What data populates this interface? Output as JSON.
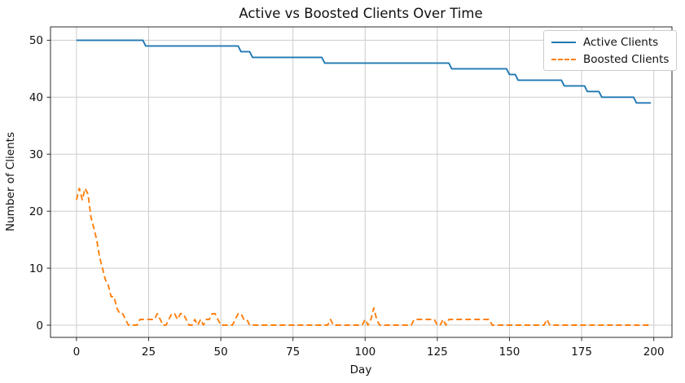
{
  "chart_data": {
    "type": "line",
    "title": "Active vs Boosted Clients Over Time",
    "xlabel": "Day",
    "ylabel": "Number of Clients",
    "xlim": [
      -9,
      206.3
    ],
    "ylim": [
      -2.15,
      52.35
    ],
    "x_ticks": [
      0,
      25,
      50,
      75,
      100,
      125,
      150,
      175,
      200
    ],
    "y_ticks": [
      0,
      10,
      20,
      30,
      40,
      50
    ],
    "grid": true,
    "legend_position": "upper right",
    "series": [
      {
        "name": "Active Clients",
        "color": "#1f77b4",
        "style": "solid",
        "x_start": 0,
        "x_step": 1,
        "values": [
          50,
          50,
          50,
          50,
          50,
          50,
          50,
          50,
          50,
          50,
          50,
          50,
          50,
          50,
          50,
          50,
          50,
          50,
          50,
          50,
          50,
          50,
          50,
          50,
          49,
          49,
          49,
          49,
          49,
          49,
          49,
          49,
          49,
          49,
          49,
          49,
          49,
          49,
          49,
          49,
          49,
          49,
          49,
          49,
          49,
          49,
          49,
          49,
          49,
          49,
          49,
          49,
          49,
          49,
          49,
          49,
          49,
          48,
          48,
          48,
          48,
          47,
          47,
          47,
          47,
          47,
          47,
          47,
          47,
          47,
          47,
          47,
          47,
          47,
          47,
          47,
          47,
          47,
          47,
          47,
          47,
          47,
          47,
          47,
          47,
          47,
          46,
          46,
          46,
          46,
          46,
          46,
          46,
          46,
          46,
          46,
          46,
          46,
          46,
          46,
          46,
          46,
          46,
          46,
          46,
          46,
          46,
          46,
          46,
          46,
          46,
          46,
          46,
          46,
          46,
          46,
          46,
          46,
          46,
          46,
          46,
          46,
          46,
          46,
          46,
          46,
          46,
          46,
          46,
          46,
          45,
          45,
          45,
          45,
          45,
          45,
          45,
          45,
          45,
          45,
          45,
          45,
          45,
          45,
          45,
          45,
          45,
          45,
          45,
          45,
          44,
          44,
          44,
          43,
          43,
          43,
          43,
          43,
          43,
          43,
          43,
          43,
          43,
          43,
          43,
          43,
          43,
          43,
          43,
          42,
          42,
          42,
          42,
          42,
          42,
          42,
          42,
          41,
          41,
          41,
          41,
          41,
          40,
          40,
          40,
          40,
          40,
          40,
          40,
          40,
          40,
          40,
          40,
          40,
          39,
          39,
          39,
          39,
          39,
          39
        ]
      },
      {
        "name": "Boosted Clients",
        "color": "#ff7f0e",
        "style": "dashed",
        "x_start": 0,
        "x_step": 1,
        "values": [
          22,
          24,
          22,
          24,
          23,
          19,
          17,
          15,
          12,
          10,
          8,
          7,
          5,
          5,
          3,
          2,
          2,
          1,
          0,
          0,
          0,
          0,
          1,
          1,
          1,
          1,
          1,
          1,
          2,
          1,
          0,
          0,
          1,
          2,
          2,
          1,
          2,
          2,
          1,
          0,
          0,
          1,
          0,
          1,
          0,
          1,
          1,
          2,
          2,
          1,
          0,
          0,
          0,
          0,
          0,
          1,
          2,
          2,
          1,
          1,
          0,
          0,
          0,
          0,
          0,
          0,
          0,
          0,
          0,
          0,
          0,
          0,
          0,
          0,
          0,
          0,
          0,
          0,
          0,
          0,
          0,
          0,
          0,
          0,
          0,
          0,
          0,
          0,
          1,
          0,
          0,
          0,
          0,
          0,
          0,
          0,
          0,
          0,
          0,
          0,
          1,
          0,
          1,
          3,
          1,
          0,
          0,
          0,
          0,
          0,
          0,
          0,
          0,
          0,
          0,
          0,
          0,
          1,
          1,
          1,
          1,
          1,
          1,
          1,
          1,
          0,
          0,
          1,
          0,
          1,
          1,
          1,
          1,
          1,
          1,
          1,
          1,
          1,
          1,
          1,
          1,
          1,
          1,
          1,
          0,
          0,
          0,
          0,
          0,
          0,
          0,
          0,
          0,
          0,
          0,
          0,
          0,
          0,
          0,
          0,
          0,
          0,
          0,
          1,
          0,
          0,
          0,
          0,
          0,
          0,
          0,
          0,
          0,
          0,
          0,
          0,
          0,
          0,
          0,
          0,
          0,
          0,
          0,
          0,
          0,
          0,
          0,
          0,
          0,
          0,
          0,
          0,
          0,
          0,
          0,
          0,
          0,
          0,
          0,
          0
        ]
      }
    ]
  }
}
